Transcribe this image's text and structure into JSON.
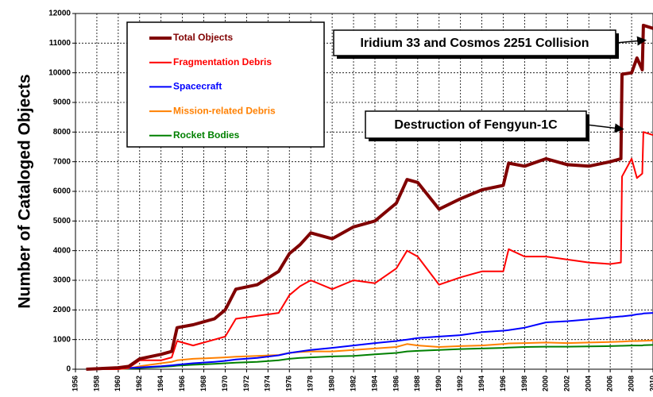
{
  "chart_data": {
    "type": "line",
    "ylabel": "Number of Cataloged Objects",
    "x": [
      1957,
      1960,
      1961,
      1962,
      1964,
      1965,
      1965.5,
      1967,
      1969,
      1970,
      1971,
      1973,
      1975,
      1976,
      1977,
      1978,
      1980,
      1982,
      1984,
      1986,
      1987,
      1988,
      1990,
      1992,
      1994,
      1996,
      1996.5,
      1998,
      2000,
      2002,
      2004,
      2006,
      2007,
      2007.1,
      2008,
      2008.5,
      2009,
      2009.1,
      2010
    ],
    "series": [
      {
        "name": "Total Objects",
        "color": "#800000",
        "values": [
          0,
          50,
          100,
          350,
          500,
          600,
          1400,
          1500,
          1700,
          2000,
          2700,
          2850,
          3300,
          3900,
          4200,
          4600,
          4400,
          4800,
          5000,
          5600,
          6400,
          6300,
          5400,
          5750,
          6050,
          6200,
          6950,
          6850,
          7100,
          6900,
          6850,
          7000,
          7100,
          9950,
          10000,
          10500,
          10100,
          11600,
          11500
        ]
      },
      {
        "name": "Fragmentation Debris",
        "color": "#ff0000",
        "values": [
          0,
          0,
          50,
          300,
          300,
          400,
          950,
          800,
          1000,
          1100,
          1700,
          1800,
          1900,
          2500,
          2800,
          3000,
          2700,
          3000,
          2900,
          3400,
          4000,
          3800,
          2850,
          3100,
          3300,
          3300,
          4050,
          3800,
          3800,
          3700,
          3600,
          3550,
          3600,
          6500,
          7100,
          6450,
          6600,
          8000,
          7900
        ]
      },
      {
        "name": "Spacecraft",
        "color": "#0000ff",
        "values": [
          0,
          20,
          40,
          60,
          100,
          130,
          150,
          200,
          250,
          280,
          330,
          380,
          470,
          550,
          600,
          650,
          720,
          800,
          880,
          950,
          1000,
          1050,
          1100,
          1150,
          1250,
          1300,
          1320,
          1400,
          1580,
          1620,
          1680,
          1750,
          1780,
          1780,
          1820,
          1850,
          1870,
          1880,
          1900
        ]
      },
      {
        "name": "Mission-related Debris",
        "color": "#ff8000",
        "values": [
          0,
          10,
          30,
          100,
          200,
          250,
          300,
          350,
          380,
          400,
          420,
          450,
          480,
          550,
          580,
          600,
          600,
          650,
          700,
          750,
          850,
          800,
          750,
          780,
          800,
          850,
          870,
          880,
          900,
          880,
          900,
          920,
          930,
          930,
          950,
          950,
          960,
          960,
          970
        ]
      },
      {
        "name": "Rocket Bodies",
        "color": "#008000",
        "values": [
          0,
          10,
          20,
          40,
          80,
          100,
          120,
          150,
          180,
          200,
          220,
          250,
          300,
          350,
          380,
          400,
          430,
          450,
          500,
          550,
          600,
          620,
          650,
          680,
          700,
          720,
          730,
          750,
          760,
          760,
          770,
          780,
          790,
          790,
          800,
          800,
          800,
          810,
          820
        ]
      }
    ],
    "annotations": [
      "Iridium 33 and Cosmos 2251 Collision",
      "Destruction of Fengyun-1C"
    ],
    "xlim": [
      1956,
      2010
    ],
    "xticks": [
      1956,
      1958,
      1960,
      1962,
      1964,
      1966,
      1968,
      1970,
      1972,
      1974,
      1976,
      1978,
      1980,
      1982,
      1984,
      1986,
      1988,
      1990,
      1992,
      1994,
      1996,
      1998,
      2000,
      2002,
      2004,
      2006,
      2008,
      2010
    ],
    "ylim": [
      0,
      12000
    ],
    "yticks": [
      0,
      1000,
      2000,
      3000,
      4000,
      5000,
      6000,
      7000,
      8000,
      9000,
      10000,
      11000,
      12000
    ],
    "grid": true,
    "legend": "upper left"
  }
}
